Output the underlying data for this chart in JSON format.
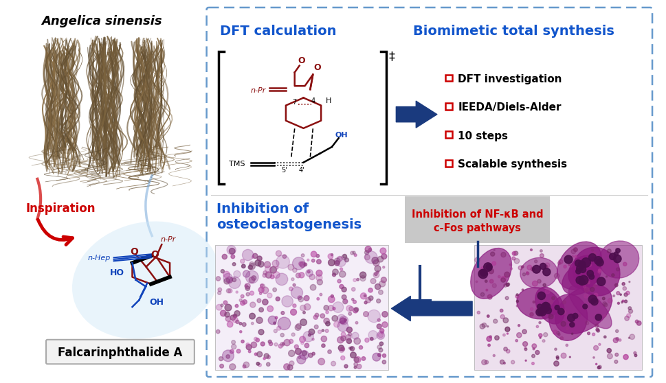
{
  "title_angelica": "Angelica sinensis",
  "title_dft": "DFT calculation",
  "title_biomimetic": "Biomimetic total synthesis",
  "title_inhibition": "Inhibition of\nosteoclastogenesis",
  "title_nfkb": "Inhibition of NF-κB and\nc-Fos pathways",
  "title_inspiration": "Inspiration",
  "title_falcarinphthalide": "Falcarinphthalide A",
  "bullet_items": [
    "DFT investigation",
    "IEEDA/Diels-Alder",
    "10 steps",
    "Scalable synthesis"
  ],
  "border_color": "#6699cc",
  "blue_title_color": "#1155cc",
  "red_color": "#cc0000",
  "dark_red_color": "#8B1010",
  "blue_color": "#1144bb",
  "dark_blue_color": "#1a3a7e",
  "gray_bg": "#c8c8c8",
  "background_color": "#ffffff",
  "herb_bg": "#f5f0e8",
  "herb_colors": [
    "#8B7355",
    "#7a6548",
    "#a08060",
    "#6b5840",
    "#c4a882",
    "#9b8060"
  ],
  "micro_left_bg": "#f0eaf5",
  "micro_right_bg": "#e8dce8"
}
